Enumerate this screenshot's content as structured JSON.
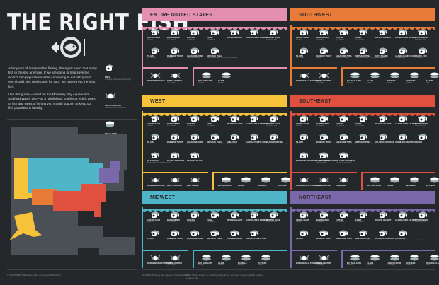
{
  "title": "THE RIGHT FISH",
  "intro": {
    "p1": "After years of irresponsible fishing, there just aren't that many fish in the sea anymore. If we are going to help save the world's fish populations while continuing to eat fish (which you should, it is really good for you), we have to eat the right fish.",
    "p2": "Use this guide—based on the Monterey Bay Aquarium's Seafood Watch List—as a helpful tool to tell you which types of fish and types of fishing you should support to keep our fish populations healthy."
  },
  "legend": [
    {
      "icon": "fish-icon",
      "label": "FISH",
      "sub": "Including farmed and wild-caught"
    },
    {
      "icon": "crab-icon",
      "label": "CRUSTACEANS",
      "sub": "Crabs, lobsters and shrimp"
    },
    {
      "icon": "shellfish-icon",
      "label": "MOLLUSKS",
      "sub": "Clams, mussels and oysters"
    }
  ],
  "colors": {
    "background": "#25282b",
    "us": "#e48fb0",
    "southwest": "#e97b38",
    "west": "#f6c23a",
    "southeast": "#e0503f",
    "midwest": "#4fb6c9",
    "northeast": "#7b68ab",
    "map_land": "#4a5055",
    "icon": "#9fb3b8"
  },
  "panels": {
    "us": {
      "title": "ENTIRE UNITED STATES",
      "fish": [
        {
          "name": "ARCTIC CHAR",
          "note": "Farmed"
        },
        {
          "name": "BARRAMUNDI",
          "note": "U.S. farmed"
        },
        {
          "name": "CATFISH",
          "note": "U.S. farmed"
        },
        {
          "name": "COBIA",
          "note": "U.S. farmed"
        },
        {
          "name": "PACIFIC HALIBUT",
          "note": ""
        },
        {
          "name": "ALASKA WILD SALMON",
          "note": ""
        },
        {
          "name": "STRIPED BASS",
          "note": "Farmed or wild"
        },
        {
          "name": "TILAPIA",
          "note": "U.S. farmed"
        },
        {
          "name": "RAINBOW TROUT",
          "note": "Farmed"
        },
        {
          "name": "ALBACORE TUNA",
          "note": "Troll or pole caught"
        },
        {
          "name": "SKIPJACK TUNA",
          "note": "Troll or pole caught, U.S. or British Columbia"
        }
      ],
      "crustaceans": [
        {
          "name": "DUNGENESS CRAB",
          "note": ""
        },
        {
          "name": "SPINY LOBSTER",
          "note": "U.S. caught"
        }
      ],
      "mollusks": [
        {
          "name": "BAY SCALLOPS",
          "note": "Farmed"
        },
        {
          "name": "CLAMS",
          "note": "Farmed"
        }
      ]
    },
    "southwest": {
      "title": "SOUTHWEST",
      "fish": [
        {
          "name": "ARCTIC CHAR",
          "note": "Farmed"
        },
        {
          "name": "BARRAMUNDI",
          "note": "U.S. farmed"
        },
        {
          "name": "CATFISH",
          "note": "U.S. farmed"
        },
        {
          "name": "COBIA",
          "note": "U.S. farmed"
        },
        {
          "name": "PACIFIC HALIBUT",
          "note": ""
        },
        {
          "name": "ALASKA WILD SALMON",
          "note": ""
        },
        {
          "name": "STRIPED BASS",
          "note": "Farmed or wild"
        },
        {
          "name": "TILAPIA",
          "note": "U.S. farmed"
        },
        {
          "name": "RAINBOW TROUT",
          "note": "Farmed"
        },
        {
          "name": "ALBACORE TUNA",
          "note": "Troll or pole caught"
        },
        {
          "name": "SKIPJACK TUNA",
          "note": "Troll or pole caught, U.S. or British Columbia"
        },
        {
          "name": "SPOT PRAWN",
          "note": "U.S. farmed"
        },
        {
          "name": "ALASKA PACIFIC COD",
          "note": "Longline caught"
        },
        {
          "name": "PACIFIC COD",
          "note": "U.S. trawled"
        }
      ],
      "crustaceans": [
        {
          "name": "DUNGENESS & STONE CRAB",
          "note": ""
        },
        {
          "name": "SPINY LOBSTER",
          "note": "U.S. caught"
        }
      ],
      "mollusks": [
        {
          "name": "BAY SCALLOPS",
          "note": "Farmed"
        },
        {
          "name": "CLAMS",
          "note": "Farmed"
        },
        {
          "name": "MUSSELS",
          "note": "Farmed"
        },
        {
          "name": "OYSTERS",
          "note": "Farmed"
        },
        {
          "name": "CLAMS",
          "note": "Wild"
        }
      ]
    },
    "west": {
      "title": "WEST",
      "fish": [
        {
          "name": "ARCTIC CHAR",
          "note": "Farmed"
        },
        {
          "name": "BARRAMUNDI",
          "note": "U.S. farmed"
        },
        {
          "name": "CATFISH",
          "note": "U.S. farmed"
        },
        {
          "name": "COBIA",
          "note": "U.S. farmed"
        },
        {
          "name": "PACIFIC HALIBUT",
          "note": ""
        },
        {
          "name": "ALASKA WILD SALMON",
          "note": ""
        },
        {
          "name": "STRIPED BASS",
          "note": "Farmed or wild"
        },
        {
          "name": "TILAPIA",
          "note": "U.S. farmed"
        },
        {
          "name": "RAINBOW TROUT",
          "note": "Farmed"
        },
        {
          "name": "ALBACORE TUNA",
          "note": "Troll or pole caught"
        },
        {
          "name": "SKIPJACK TUNA",
          "note": "Troll or pole caught, U.S. or British Columbia"
        },
        {
          "name": "SABLEFISH",
          "note": "U.S. farmed"
        },
        {
          "name": "ALASKA PACIFIC COD",
          "note": "Longline caught"
        },
        {
          "name": "BLACK ROCKFISH",
          "note": "California to Oregon hook-and-line"
        },
        {
          "name": "BLACK COD",
          "note": "Alaska or British Columbia caught"
        },
        {
          "name": "PACIFIC SARDINES",
          "note": ""
        },
        {
          "name": "WHITE SEABASS",
          "note": ""
        }
      ],
      "crustaceans": [
        {
          "name": "DUNGENESS CRAB",
          "note": ""
        },
        {
          "name": "SPINY LOBSTER",
          "note": "U.S. caught"
        },
        {
          "name": "PINK SHRIMP",
          "note": "Oregon caught"
        }
      ],
      "mollusks": [
        {
          "name": "BAY SCALLOPS",
          "note": "Farmed"
        },
        {
          "name": "CLAMS",
          "note": "Farmed"
        },
        {
          "name": "MUSSELS",
          "note": "Farmed"
        },
        {
          "name": "OYSTERS",
          "note": "Farmed"
        }
      ]
    },
    "southeast": {
      "title": "SOUTHEAST",
      "fish": [
        {
          "name": "ARCTIC CHAR",
          "note": "Farmed"
        },
        {
          "name": "BARRAMUNDI",
          "note": "U.S. farmed"
        },
        {
          "name": "CATFISH",
          "note": "U.S. farmed"
        },
        {
          "name": "COBIA",
          "note": "U.S. farmed"
        },
        {
          "name": "PACIFIC HALIBUT",
          "note": ""
        },
        {
          "name": "ALASKA WILD SALMON",
          "note": ""
        },
        {
          "name": "STRIPED BASS",
          "note": "Farmed or wild"
        },
        {
          "name": "TILAPIA",
          "note": "U.S. farmed"
        },
        {
          "name": "RAINBOW TROUT",
          "note": "Farmed"
        },
        {
          "name": "ALBACORE TUNA",
          "note": "Troll or pole caught"
        },
        {
          "name": "SKIPJACK TUNA",
          "note": "Troll or pole caught, U.S. or British Columbia"
        },
        {
          "name": "ATLANTIC CROAKER",
          "note": ""
        },
        {
          "name": "VERMILION SNAPPER",
          "note": ""
        },
        {
          "name": "WAHOO",
          "note": ""
        },
        {
          "name": "RED DRUM OR SPANISH MACKEREL",
          "note": ""
        },
        {
          "name": "ALASKA PACIFIC COD",
          "note": "Longline caught"
        },
        {
          "name": "ATLANTIC MAHI MAHI",
          "note": "U.S. troll or pole caught"
        }
      ],
      "crustaceans": [
        {
          "name": "DUNGENESS & STONE CRAB",
          "note": ""
        },
        {
          "name": "SPINY LOBSTER",
          "note": "U.S. caught"
        },
        {
          "name": "CRAWFISH",
          "note": "U.S. farmed"
        }
      ],
      "mollusks": [
        {
          "name": "BAY SCALLOPS",
          "note": "Farmed"
        },
        {
          "name": "CLAMS",
          "note": "Farmed"
        },
        {
          "name": "MUSSELS",
          "note": "Farmed"
        },
        {
          "name": "OYSTERS",
          "note": "Farmed"
        }
      ]
    },
    "midwest": {
      "title": "MIDWEST",
      "fish": [
        {
          "name": "ARCTIC CHAR",
          "note": "Farmed"
        },
        {
          "name": "BARRAMUNDI",
          "note": "U.S. farmed"
        },
        {
          "name": "CATFISH",
          "note": "U.S. farmed"
        },
        {
          "name": "COBIA",
          "note": "U.S. farmed"
        },
        {
          "name": "PACIFIC HALIBUT",
          "note": ""
        },
        {
          "name": "ALASKA WILD SALMON",
          "note": ""
        },
        {
          "name": "STRIPED BASS",
          "note": "Farmed or wild"
        },
        {
          "name": "TILAPIA",
          "note": "U.S. farmed"
        },
        {
          "name": "RAINBOW TROUT",
          "note": "Farmed"
        },
        {
          "name": "ALBACORE TUNA",
          "note": "Troll or pole caught"
        },
        {
          "name": "SKIPJACK TUNA",
          "note": "Troll or pole caught, U.S. or British Columbia"
        },
        {
          "name": "LAKE WHITEFISH",
          "note": ""
        },
        {
          "name": "ALASKA PACIFIC COD",
          "note": "Longline caught"
        }
      ],
      "crustaceans": [
        {
          "name": "DUNGENESS & STONE CRAB",
          "note": ""
        },
        {
          "name": "SPINY LOBSTER",
          "note": "U.S. caught"
        }
      ],
      "mollusks": [
        {
          "name": "BAY SCALLOPS",
          "note": "Farmed"
        },
        {
          "name": "CLAMS",
          "note": "Farmed"
        },
        {
          "name": "MUSSELS",
          "note": "Farmed"
        },
        {
          "name": "OYSTERS",
          "note": "Farmed"
        }
      ]
    },
    "northeast": {
      "title": "NORTHEAST",
      "fish": [
        {
          "name": "ARCTIC CHAR",
          "note": "Farmed"
        },
        {
          "name": "BARRAMUNDI",
          "note": "U.S. farmed"
        },
        {
          "name": "CATFISH",
          "note": "U.S. farmed"
        },
        {
          "name": "COBIA",
          "note": "U.S. farmed"
        },
        {
          "name": "PACIFIC HALIBUT",
          "note": ""
        },
        {
          "name": "ALASKA WILD SALMON",
          "note": ""
        },
        {
          "name": "STRIPED BASS",
          "note": "Farmed or wild"
        },
        {
          "name": "TILAPIA",
          "note": "U.S. farmed"
        },
        {
          "name": "RAINBOW TROUT",
          "note": "Farmed"
        },
        {
          "name": "ALBACORE TUNA",
          "note": "Troll or pole caught"
        },
        {
          "name": "SKIPJACK TUNA",
          "note": "Troll or pole caught, U.S. or British Columbia"
        },
        {
          "name": "ATLANTIC CROAKER",
          "note": ""
        },
        {
          "name": "CRAWFISH",
          "note": "Maryland to Mid-Atlantic caught, U.S. or Canada"
        }
      ],
      "crustaceans": [
        {
          "name": "DUNGENESS & STONE CRAB",
          "note": ""
        },
        {
          "name": "SPINY LOBSTER",
          "note": "U.S. caught"
        }
      ],
      "mollusks": [
        {
          "name": "BAY SCALLOPS",
          "note": "Farmed"
        },
        {
          "name": "CLAMS",
          "note": "Farmed"
        },
        {
          "name": "LONGFIN SQUID",
          "note": "U.S. caught"
        },
        {
          "name": "OYSTERS",
          "note": "Farmed"
        },
        {
          "name": "QUAHOG CLAMS",
          "note": "Wild"
        }
      ]
    }
  },
  "footer": {
    "credit": "© COLOURBOX Illustration 2012 and Always With Honor",
    "source": "SOURCE Monterey Bay Aquarium Seafood Watch",
    "note": "NOTE Where location or catching methods are not noted, any form of that seafood is safe to eat."
  }
}
